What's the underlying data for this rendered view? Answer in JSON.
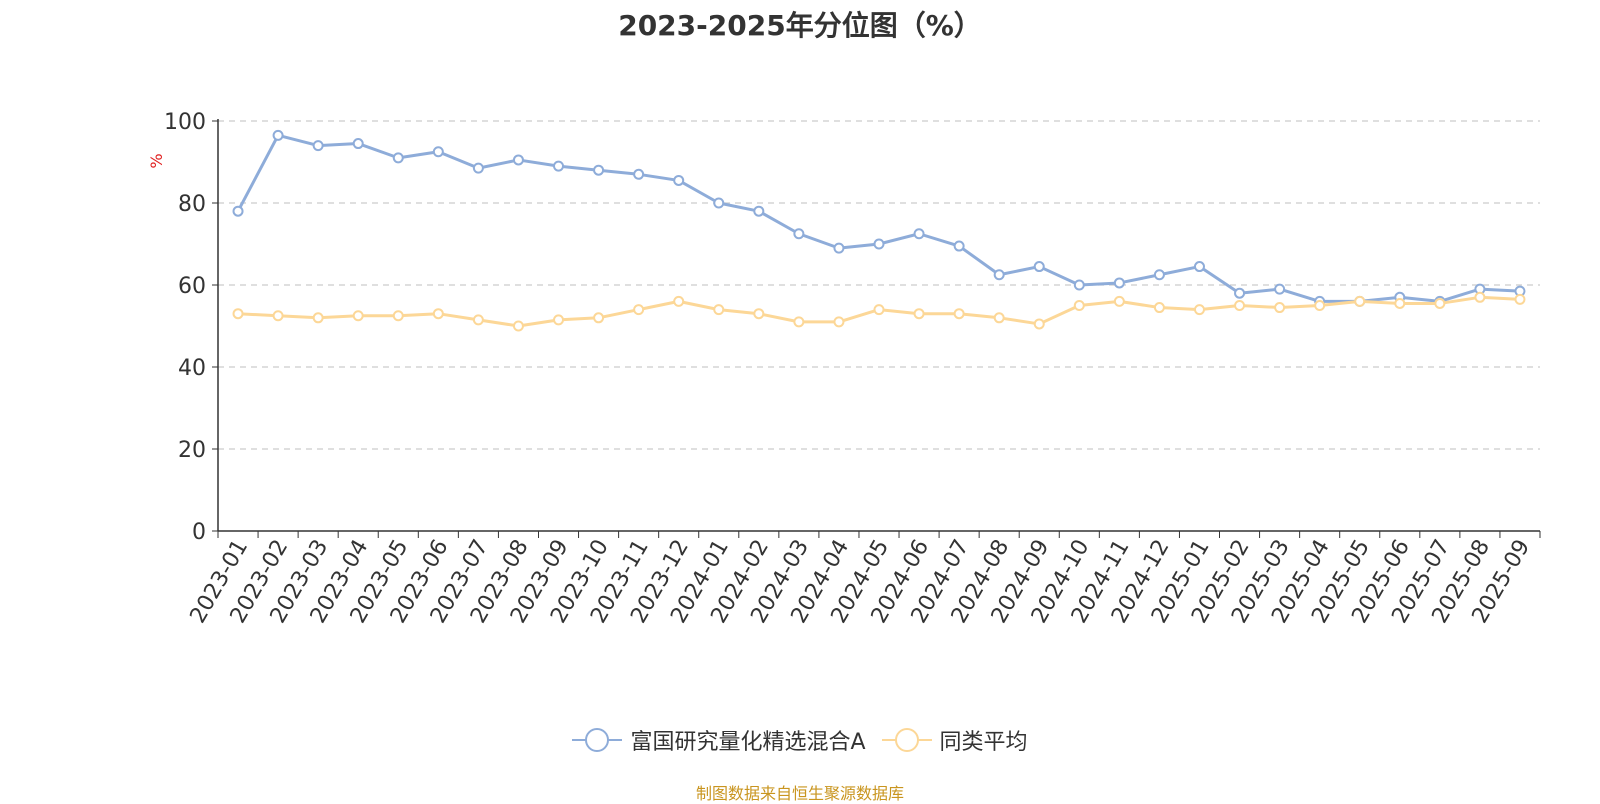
{
  "chart_data": {
    "type": "line",
    "title": "2023-2025年分位图（%）",
    "ylabel": "%",
    "ylim": [
      0,
      100
    ],
    "yticks": [
      0,
      20,
      40,
      60,
      80,
      100
    ],
    "grid": true,
    "legend_position": "bottom-center",
    "categories": [
      "2023-01",
      "2023-02",
      "2023-03",
      "2023-04",
      "2023-05",
      "2023-06",
      "2023-07",
      "2023-08",
      "2023-09",
      "2023-10",
      "2023-11",
      "2023-12",
      "2024-01",
      "2024-02",
      "2024-03",
      "2024-04",
      "2024-05",
      "2024-06",
      "2024-07",
      "2024-08",
      "2024-09",
      "2024-10",
      "2024-11",
      "2024-12",
      "2025-01",
      "2025-02",
      "2025-03",
      "2025-04",
      "2025-05",
      "2025-06",
      "2025-07",
      "2025-08",
      "2025-09"
    ],
    "series": [
      {
        "name": "富国研究量化精选混合A",
        "color": "#8eacd9",
        "values": [
          78,
          96.5,
          94,
          94.5,
          91,
          92.5,
          88.5,
          90.5,
          89,
          88,
          87,
          85.5,
          80,
          78,
          72.5,
          69,
          70,
          72.5,
          69.5,
          62.5,
          64.5,
          60,
          60.5,
          62.5,
          64.5,
          58,
          59,
          56,
          56,
          57,
          56,
          59,
          58.5
        ]
      },
      {
        "name": "同类平均",
        "color": "#fcd797",
        "values": [
          53,
          52.5,
          52,
          52.5,
          52.5,
          53,
          51.5,
          50,
          51.5,
          52,
          54,
          56,
          54,
          53,
          51,
          51,
          54,
          53,
          53,
          52,
          50.5,
          55,
          56,
          54.5,
          54,
          55,
          54.5,
          55,
          56,
          55.5,
          55.5,
          57,
          56.5
        ]
      }
    ]
  },
  "source_note": "制图数据来自恒生聚源数据库"
}
